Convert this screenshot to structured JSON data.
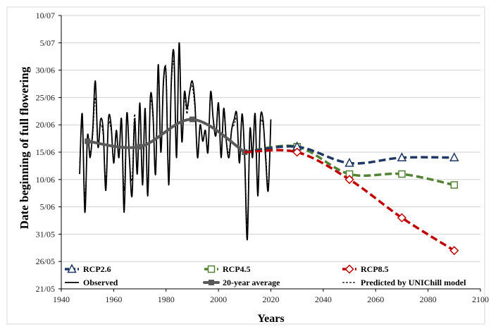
{
  "chart_data": {
    "type": "line",
    "xlabel": "Years",
    "ylabel": "Date beginning of full flowering",
    "xlim": [
      1940,
      2100
    ],
    "x_ticks": [
      1940,
      1960,
      1980,
      2000,
      2020,
      2040,
      2060,
      2080,
      2100
    ],
    "ylim_doy": [
      141,
      191
    ],
    "y_ticks": [
      {
        "label": "10/07",
        "doy": 191
      },
      {
        "label": "5/07",
        "doy": 186
      },
      {
        "label": "30/06",
        "doy": 181
      },
      {
        "label": "25/06",
        "doy": 176
      },
      {
        "label": "20/06",
        "doy": 171
      },
      {
        "label": "15/06",
        "doy": 166
      },
      {
        "label": "10/06",
        "doy": 161
      },
      {
        "label": "5/06",
        "doy": 156
      },
      {
        "label": "31/05",
        "doy": 151
      },
      {
        "label": "26/05",
        "doy": 146
      },
      {
        "label": "21/05",
        "doy": 141
      }
    ],
    "grid": "horizontal",
    "legend_placement": "bottom",
    "series": [
      {
        "name": "Observed",
        "color": "#000000",
        "style": "solid",
        "x": [
          1947,
          1948,
          1949,
          1950,
          1951,
          1952,
          1953,
          1954,
          1955,
          1956,
          1957,
          1958,
          1959,
          1960,
          1961,
          1962,
          1963,
          1964,
          1965,
          1966,
          1967,
          1968,
          1969,
          1970,
          1971,
          1972,
          1973,
          1974,
          1975,
          1976,
          1977,
          1978,
          1979,
          1980,
          1981,
          1982,
          1983,
          1984,
          1985,
          1986,
          1987,
          1988,
          1989,
          1990,
          1991,
          1992,
          1993,
          1994,
          1995,
          1996,
          1997,
          1998,
          1999,
          2000,
          2001,
          2002,
          2003,
          2004,
          2005,
          2006,
          2007,
          2008,
          2009,
          2010,
          2011,
          2012,
          2013,
          2014,
          2015,
          2016,
          2017,
          2018,
          2019,
          2020
        ],
        "y": [
          162,
          173,
          155,
          169,
          165,
          170,
          179,
          167,
          172,
          170,
          159,
          172,
          171,
          164,
          170,
          165,
          172,
          155,
          173,
          165,
          158,
          172,
          162,
          175,
          160,
          174,
          158,
          176,
          173,
          162,
          182,
          166,
          179,
          180,
          160,
          179,
          184,
          165,
          186,
          168,
          177,
          174,
          177,
          179,
          175,
          165,
          171,
          168,
          170,
          166,
          177,
          172,
          169,
          175,
          165,
          174,
          168,
          165,
          170,
          172,
          173,
          164,
          173,
          165,
          150,
          170,
          165,
          173,
          158,
          172,
          172,
          165,
          159,
          172
        ]
      },
      {
        "name": "Predicted by  UNIChill model",
        "color": "#000000",
        "style": "dashed",
        "x": [
          1947,
          1948,
          1949,
          1950,
          1951,
          1952,
          1953,
          1954,
          1955,
          1956,
          1957,
          1958,
          1959,
          1960,
          1961,
          1962,
          1963,
          1964,
          1965,
          1966,
          1967,
          1968,
          1969,
          1970,
          1971,
          1972,
          1973,
          1974,
          1975,
          1976,
          1977,
          1978,
          1979,
          1980,
          1981,
          1982,
          1983,
          1984,
          1985,
          1986,
          1987,
          1988,
          1989,
          1990,
          1991,
          1992,
          1993,
          1994,
          1995,
          1996,
          1997,
          1998,
          1999,
          2000,
          2001,
          2002,
          2003,
          2004,
          2005,
          2006,
          2007,
          2008,
          2009,
          2010,
          2011,
          2012,
          2013,
          2014,
          2015,
          2016,
          2017,
          2018,
          2019,
          2020
        ],
        "y": [
          164,
          171,
          158,
          168,
          166,
          169,
          176,
          167,
          171,
          169,
          161,
          171,
          170,
          165,
          169,
          166,
          172,
          159,
          173,
          165,
          161,
          173,
          163,
          173,
          162,
          172,
          160,
          175,
          172,
          163,
          180,
          166,
          178,
          181,
          162,
          178,
          182,
          166,
          184,
          169,
          176,
          173,
          177,
          178,
          174,
          166,
          171,
          168,
          170,
          167,
          176,
          172,
          170,
          174,
          166,
          173,
          168,
          166,
          170,
          171,
          172,
          165,
          172,
          166,
          153,
          170,
          166,
          172,
          160,
          171,
          171,
          166,
          160,
          171
        ]
      },
      {
        "name": "20-year average",
        "color": "#595959",
        "style": "solid-thick",
        "x": [
          1950,
          1970,
          1990,
          2010
        ],
        "y": [
          168,
          167,
          172,
          166
        ]
      },
      {
        "name": "RCP2.6",
        "color": "#1F3864",
        "style": "dashed-thick",
        "marker": "triangle",
        "x": [
          2010,
          2030,
          2050,
          2070,
          2090
        ],
        "y": [
          166,
          167,
          164,
          165,
          165
        ]
      },
      {
        "name": "RCP4.5",
        "color": "#548235",
        "style": "dashed-thick",
        "marker": "square",
        "x": [
          2010,
          2030,
          2050,
          2070,
          2090
        ],
        "y": [
          166,
          167,
          162,
          162,
          160
        ]
      },
      {
        "name": "RCP8.5",
        "color": "#C00000",
        "style": "dashed-thick",
        "marker": "diamond",
        "x": [
          2010,
          2030,
          2050,
          2070,
          2090
        ],
        "y": [
          166,
          166,
          161,
          154,
          148
        ]
      }
    ],
    "legend": [
      {
        "label": "RCP2.6",
        "series": "RCP2.6"
      },
      {
        "label": "RCP4.5",
        "series": "RCP4.5"
      },
      {
        "label": "RCP8.5",
        "series": "RCP8.5"
      },
      {
        "label": "Observed",
        "series": "Observed"
      },
      {
        "label": "20-year average",
        "series": "20-year average"
      },
      {
        "label": "Predicted by  UNIChill model",
        "series": "Predicted by  UNIChill model"
      }
    ]
  }
}
